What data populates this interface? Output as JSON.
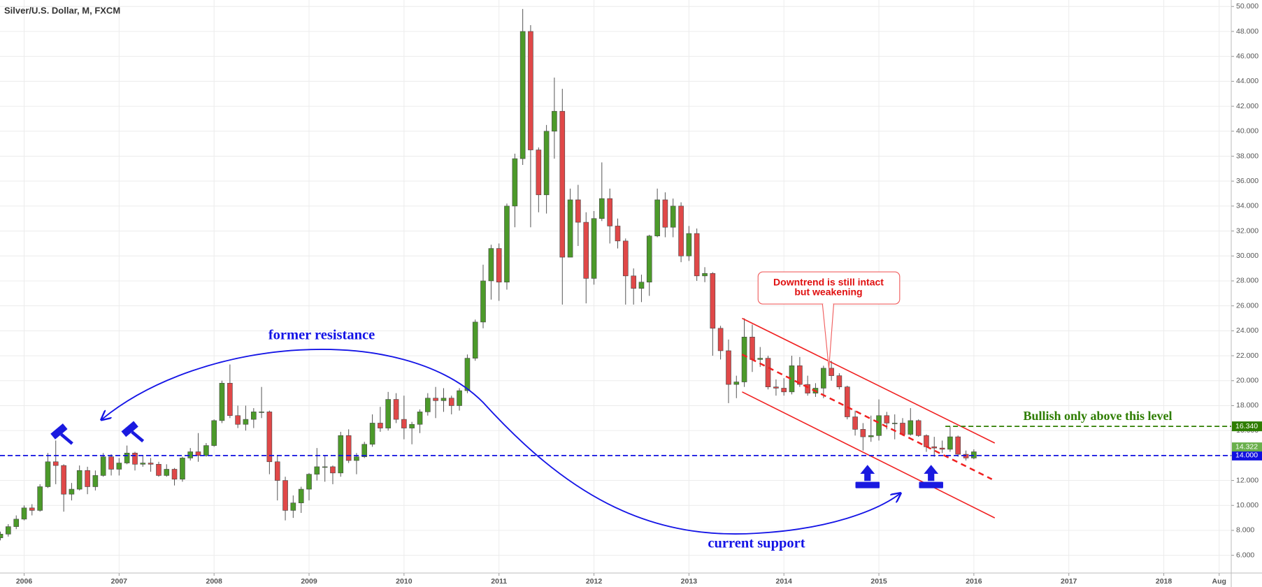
{
  "chart_data": {
    "type": "candlestick",
    "title": "Silver/U.S. Dollar, M, FXCM",
    "xlim": [
      2005.746,
      2018.71
    ],
    "ylim": [
      4.58,
      50.52
    ],
    "xticks": [
      2006,
      2007,
      2008,
      2009,
      2010,
      2011,
      2012,
      2013,
      2014,
      2015,
      2016,
      2017,
      2018,
      {
        "value": 2018.583,
        "label": "Aug"
      }
    ],
    "yticks": [
      {
        "value": 6,
        "label": "6.000"
      },
      {
        "value": 8,
        "label": "8.000"
      },
      {
        "value": 10,
        "label": "10.000"
      },
      {
        "value": 12,
        "label": "12.000"
      },
      {
        "value": 14,
        "label": "14.000"
      },
      {
        "value": 16,
        "label": "16.000"
      },
      {
        "value": 18,
        "label": "18.000"
      },
      {
        "value": 20,
        "label": "20.000"
      },
      {
        "value": 22,
        "label": "22.000"
      },
      {
        "value": 24,
        "label": "24.000"
      },
      {
        "value": 26,
        "label": "26.000"
      },
      {
        "value": 28,
        "label": "28.000"
      },
      {
        "value": 30,
        "label": "30.000"
      },
      {
        "value": 32,
        "label": "32.000"
      },
      {
        "value": 34,
        "label": "34.000"
      },
      {
        "value": 36,
        "label": "36.000"
      },
      {
        "value": 38,
        "label": "38.000"
      },
      {
        "value": 40,
        "label": "40.000"
      },
      {
        "value": 42,
        "label": "42.000"
      },
      {
        "value": 44,
        "label": "44.000"
      },
      {
        "value": 46,
        "label": "46.000"
      },
      {
        "value": 48,
        "label": "48.000"
      },
      {
        "value": 50,
        "label": "50.000"
      }
    ],
    "grid": true,
    "up_color": "#4c9a2a",
    "down_color": "#e04848",
    "x": [
      2005.75,
      2005.833,
      2005.917,
      2006,
      2006.083,
      2006.167,
      2006.25,
      2006.333,
      2006.417,
      2006.5,
      2006.583,
      2006.667,
      2006.75,
      2006.833,
      2006.917,
      2007,
      2007.083,
      2007.167,
      2007.25,
      2007.333,
      2007.417,
      2007.5,
      2007.583,
      2007.667,
      2007.75,
      2007.833,
      2007.917,
      2008,
      2008.083,
      2008.167,
      2008.25,
      2008.333,
      2008.417,
      2008.5,
      2008.583,
      2008.667,
      2008.75,
      2008.833,
      2008.917,
      2009,
      2009.083,
      2009.167,
      2009.25,
      2009.333,
      2009.417,
      2009.5,
      2009.583,
      2009.667,
      2009.75,
      2009.833,
      2009.917,
      2010,
      2010.083,
      2010.167,
      2010.25,
      2010.333,
      2010.417,
      2010.5,
      2010.583,
      2010.667,
      2010.75,
      2010.833,
      2010.917,
      2011,
      2011.083,
      2011.167,
      2011.25,
      2011.333,
      2011.417,
      2011.5,
      2011.583,
      2011.667,
      2011.75,
      2011.833,
      2011.917,
      2012,
      2012.083,
      2012.167,
      2012.25,
      2012.333,
      2012.417,
      2012.5,
      2012.583,
      2012.667,
      2012.75,
      2012.833,
      2012.917,
      2013,
      2013.083,
      2013.167,
      2013.25,
      2013.333,
      2013.417,
      2013.5,
      2013.583,
      2013.667,
      2013.75,
      2013.833,
      2013.917,
      2014,
      2014.083,
      2014.167,
      2014.25,
      2014.333,
      2014.417,
      2014.5,
      2014.583,
      2014.667,
      2014.75,
      2014.833,
      2014.917,
      2015,
      2015.083,
      2015.167,
      2015.25,
      2015.333,
      2015.417,
      2015.5,
      2015.583,
      2015.667,
      2015.75,
      2015.833,
      2015.917,
      2016
    ],
    "open": [
      7.4,
      7.7,
      8.3,
      8.9,
      9.8,
      9.6,
      11.5,
      13.5,
      13.2,
      10.9,
      11.3,
      12.8,
      11.5,
      12.4,
      13.9,
      12.9,
      13.4,
      14.2,
      13.3,
      13.4,
      13.3,
      12.4,
      12.9,
      12.1,
      13.8,
      14.3,
      14.0,
      14.8,
      16.8,
      19.8,
      17.2,
      16.5,
      16.9,
      17.5,
      17.5,
      13.5,
      12.0,
      9.6,
      10.2,
      11.3,
      12.5,
      13.1,
      13.1,
      12.6,
      15.6,
      13.6,
      13.9,
      14.9,
      16.6,
      16.2,
      18.5,
      16.9,
      16.2,
      16.5,
      17.5,
      18.6,
      18.4,
      18.6,
      18.0,
      19.2,
      21.8,
      24.7,
      28.0,
      30.6,
      27.9,
      34.0,
      37.8,
      48.0,
      38.5,
      34.9,
      40.0,
      41.6,
      29.9,
      34.5,
      32.7,
      28.2,
      33.0,
      34.6,
      32.4,
      31.2,
      28.4,
      27.4,
      27.9,
      31.6,
      34.5,
      32.3,
      34.0,
      30.0,
      31.8,
      28.4,
      28.6,
      24.2,
      22.4,
      19.7,
      19.9,
      23.5,
      21.7,
      21.8,
      19.5,
      19.4,
      19.1,
      21.2,
      19.7,
      19.0,
      19.4,
      21.0,
      20.4,
      19.5,
      17.1,
      16.1,
      15.5,
      15.6,
      17.2,
      16.6,
      16.6,
      15.7,
      16.8,
      15.6,
      14.7,
      14.6,
      14.5,
      15.5,
      14.1,
      13.8
    ],
    "high": [
      7.9,
      8.5,
      9.2,
      10.0,
      10.1,
      11.7,
      14.2,
      15.2,
      13.3,
      11.8,
      13.2,
      13.1,
      12.8,
      14.2,
      14.1,
      13.8,
      14.8,
      14.3,
      14.0,
      13.8,
      13.5,
      13.3,
      13.0,
      13.9,
      14.6,
      15.8,
      15.0,
      16.9,
      20.0,
      21.3,
      18.0,
      18.0,
      17.8,
      19.5,
      17.6,
      14.0,
      12.3,
      10.8,
      11.5,
      12.6,
      14.6,
      14.0,
      13.2,
      15.9,
      16.1,
      14.2,
      15.1,
      17.3,
      17.9,
      19.1,
      19.0,
      18.8,
      16.7,
      17.7,
      19.0,
      19.5,
      19.4,
      18.8,
      19.4,
      22.1,
      24.9,
      29.3,
      30.9,
      31.0,
      34.2,
      38.2,
      49.8,
      48.5,
      38.7,
      40.5,
      44.3,
      43.4,
      35.4,
      35.7,
      33.5,
      33.6,
      37.5,
      35.4,
      33.0,
      31.4,
      29.0,
      28.5,
      31.7,
      35.4,
      35.1,
      34.6,
      34.3,
      32.4,
      32.2,
      29.1,
      28.7,
      24.4,
      23.3,
      20.4,
      25.0,
      24.5,
      22.7,
      22.0,
      20.1,
      20.2,
      22.0,
      21.9,
      20.4,
      19.8,
      21.2,
      21.6,
      20.6,
      19.6,
      17.6,
      16.6,
      17.2,
      18.5,
      17.5,
      17.3,
      17.0,
      17.8,
      16.9,
      15.7,
      15.5,
      15.2,
      16.3,
      15.6,
      14.4,
      14.5
    ],
    "low": [
      7.2,
      7.5,
      8.1,
      8.8,
      9.2,
      9.5,
      11.4,
      11.7,
      9.5,
      10.4,
      11.2,
      10.9,
      11.2,
      12.3,
      12.4,
      12.4,
      13.3,
      12.8,
      13.1,
      12.7,
      12.3,
      12.3,
      11.6,
      11.9,
      13.6,
      13.5,
      13.9,
      14.7,
      16.6,
      17.0,
      16.2,
      16.0,
      16.2,
      17.0,
      12.5,
      10.4,
      8.8,
      9.0,
      9.4,
      10.4,
      12.0,
      11.9,
      11.7,
      12.3,
      13.4,
      12.5,
      13.8,
      14.7,
      15.9,
      16.0,
      16.6,
      15.3,
      14.9,
      15.8,
      17.2,
      17.0,
      17.5,
      17.3,
      17.6,
      19.0,
      21.6,
      24.2,
      26.5,
      26.4,
      27.3,
      32.3,
      37.3,
      32.3,
      33.5,
      33.4,
      37.8,
      26.1,
      29.9,
      30.8,
      26.2,
      27.7,
      32.8,
      31.0,
      30.6,
      26.1,
      26.1,
      26.3,
      26.8,
      31.5,
      31.5,
      31.5,
      29.5,
      29.6,
      28.0,
      27.9,
      22.0,
      21.7,
      18.2,
      18.6,
      19.5,
      20.7,
      21.1,
      19.3,
      18.8,
      18.8,
      18.9,
      19.5,
      18.8,
      18.7,
      18.6,
      20.0,
      19.3,
      16.9,
      15.6,
      14.4,
      15.1,
      15.2,
      16.1,
      15.3,
      15.6,
      15.6,
      15.5,
      14.3,
      13.9,
      14.2,
      14.3,
      13.9,
      13.6,
      13.7
    ],
    "close": [
      7.7,
      8.3,
      8.9,
      9.8,
      9.6,
      11.5,
      13.5,
      13.2,
      10.9,
      11.3,
      12.8,
      11.5,
      12.4,
      13.9,
      12.9,
      13.4,
      14.2,
      13.3,
      13.4,
      13.3,
      12.4,
      12.9,
      12.1,
      13.8,
      14.3,
      14.0,
      14.8,
      16.8,
      19.8,
      17.2,
      16.5,
      16.9,
      17.5,
      17.5,
      13.5,
      12.0,
      9.6,
      10.2,
      11.3,
      12.5,
      13.1,
      13.1,
      12.6,
      15.6,
      13.6,
      13.9,
      14.9,
      16.6,
      16.2,
      18.5,
      16.9,
      16.2,
      16.5,
      17.5,
      18.6,
      18.4,
      18.6,
      18.0,
      19.2,
      21.8,
      24.7,
      28.0,
      30.6,
      27.9,
      34.0,
      37.8,
      48.0,
      38.5,
      34.9,
      40.0,
      41.6,
      29.9,
      34.5,
      32.7,
      28.2,
      33.0,
      34.6,
      32.4,
      31.2,
      28.4,
      27.4,
      27.9,
      31.6,
      34.5,
      32.3,
      34.0,
      30.0,
      31.8,
      28.4,
      28.6,
      24.2,
      22.4,
      19.7,
      19.9,
      23.5,
      21.7,
      21.8,
      19.5,
      19.4,
      19.1,
      21.2,
      19.7,
      19.0,
      19.4,
      21.0,
      20.4,
      19.5,
      17.1,
      16.1,
      15.5,
      15.6,
      17.2,
      16.6,
      16.6,
      15.7,
      16.8,
      15.6,
      14.7,
      14.6,
      14.5,
      15.5,
      14.1,
      13.8,
      14.3
    ],
    "hlines": [
      {
        "value": 14,
        "label": "14.000",
        "color": "#1010e0",
        "x": 2005.746
      },
      {
        "value": 16.34,
        "label": "16.340",
        "color": "#2e7d00",
        "x": 2015.7
      }
    ],
    "last_price": {
      "value": 14.322,
      "label": "14.322",
      "color": "#6ab04c"
    },
    "trendlines": [
      {
        "x": [
          2013.56,
          2016.22
        ],
        "y": [
          25.0,
          15.0
        ],
        "color": "#f02020",
        "dashed": false
      },
      {
        "x": [
          2013.56,
          2016.22
        ],
        "y": [
          19.1,
          9.0
        ],
        "color": "#f02020",
        "dashed": false
      },
      {
        "x": [
          2013.56,
          2016.19
        ],
        "y": [
          22.1,
          12.1
        ],
        "color": "#f02020",
        "dashed": true
      }
    ],
    "annotations": {
      "former_resistance": "former resistance",
      "current_support": "current support",
      "callout": [
        "Downtrend is still intact",
        "but weakening"
      ],
      "bullish": "Bullish only above this level"
    }
  }
}
